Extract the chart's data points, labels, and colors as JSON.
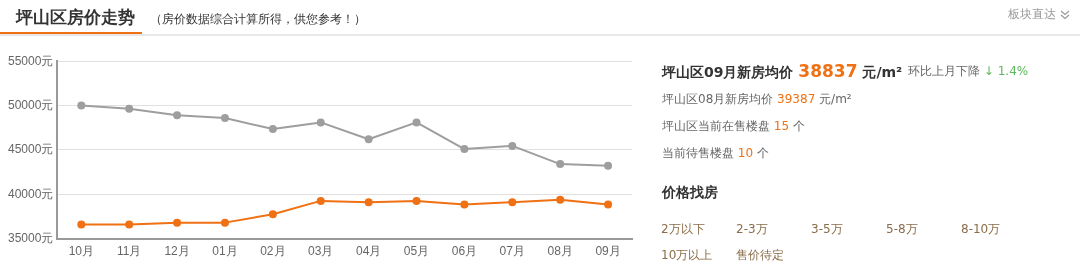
{
  "chart_data": [
    {
      "type": "line",
      "title": "坪山区房价走势",
      "subtitle": "（房价数据综合计算所得，供您参考！）",
      "categories": [
        "10月",
        "11月",
        "12月",
        "01月",
        "02月",
        "03月",
        "04月",
        "05月",
        "06月",
        "07月",
        "08月",
        "09月"
      ],
      "series": [
        {
          "color": "#9e9e9e",
          "values": [
            50000,
            49650,
            48900,
            48600,
            47350,
            48100,
            46200,
            48100,
            45100,
            45450,
            43400,
            43200
          ]
        },
        {
          "color": "#f07014",
          "values": [
            36600,
            36600,
            36800,
            36800,
            37750,
            39250,
            39100,
            39250,
            38850,
            39100,
            39387,
            38837
          ]
        }
      ],
      "ylim": [
        35000,
        55000
      ],
      "yticks": [
        {
          "value": 35000,
          "label": "35000元"
        },
        {
          "value": 40000,
          "label": "40000元"
        },
        {
          "value": 45000,
          "label": "45000元"
        },
        {
          "value": 50000,
          "label": "50000元"
        },
        {
          "value": 55000,
          "label": "55000元"
        }
      ],
      "grid": "y",
      "legend": false,
      "marker": "circle",
      "line_style": "solid"
    },
    {
      "type": "other",
      "title": "坪山区09月新房均价 38837 元/m²",
      "annotations": [
        "环比上月下降 ↓ 1.4%",
        "坪山区08月新房均价 39387 元/m²",
        "坪山区当前在售楼盘 15 个",
        "当前待售楼盘 10 个",
        "价格找房",
        "2万以下",
        "2-3万",
        "3-5万",
        "5-8万",
        "8-10万",
        "10万以上",
        "售价待定",
        "板块直达"
      ]
    }
  ]
}
